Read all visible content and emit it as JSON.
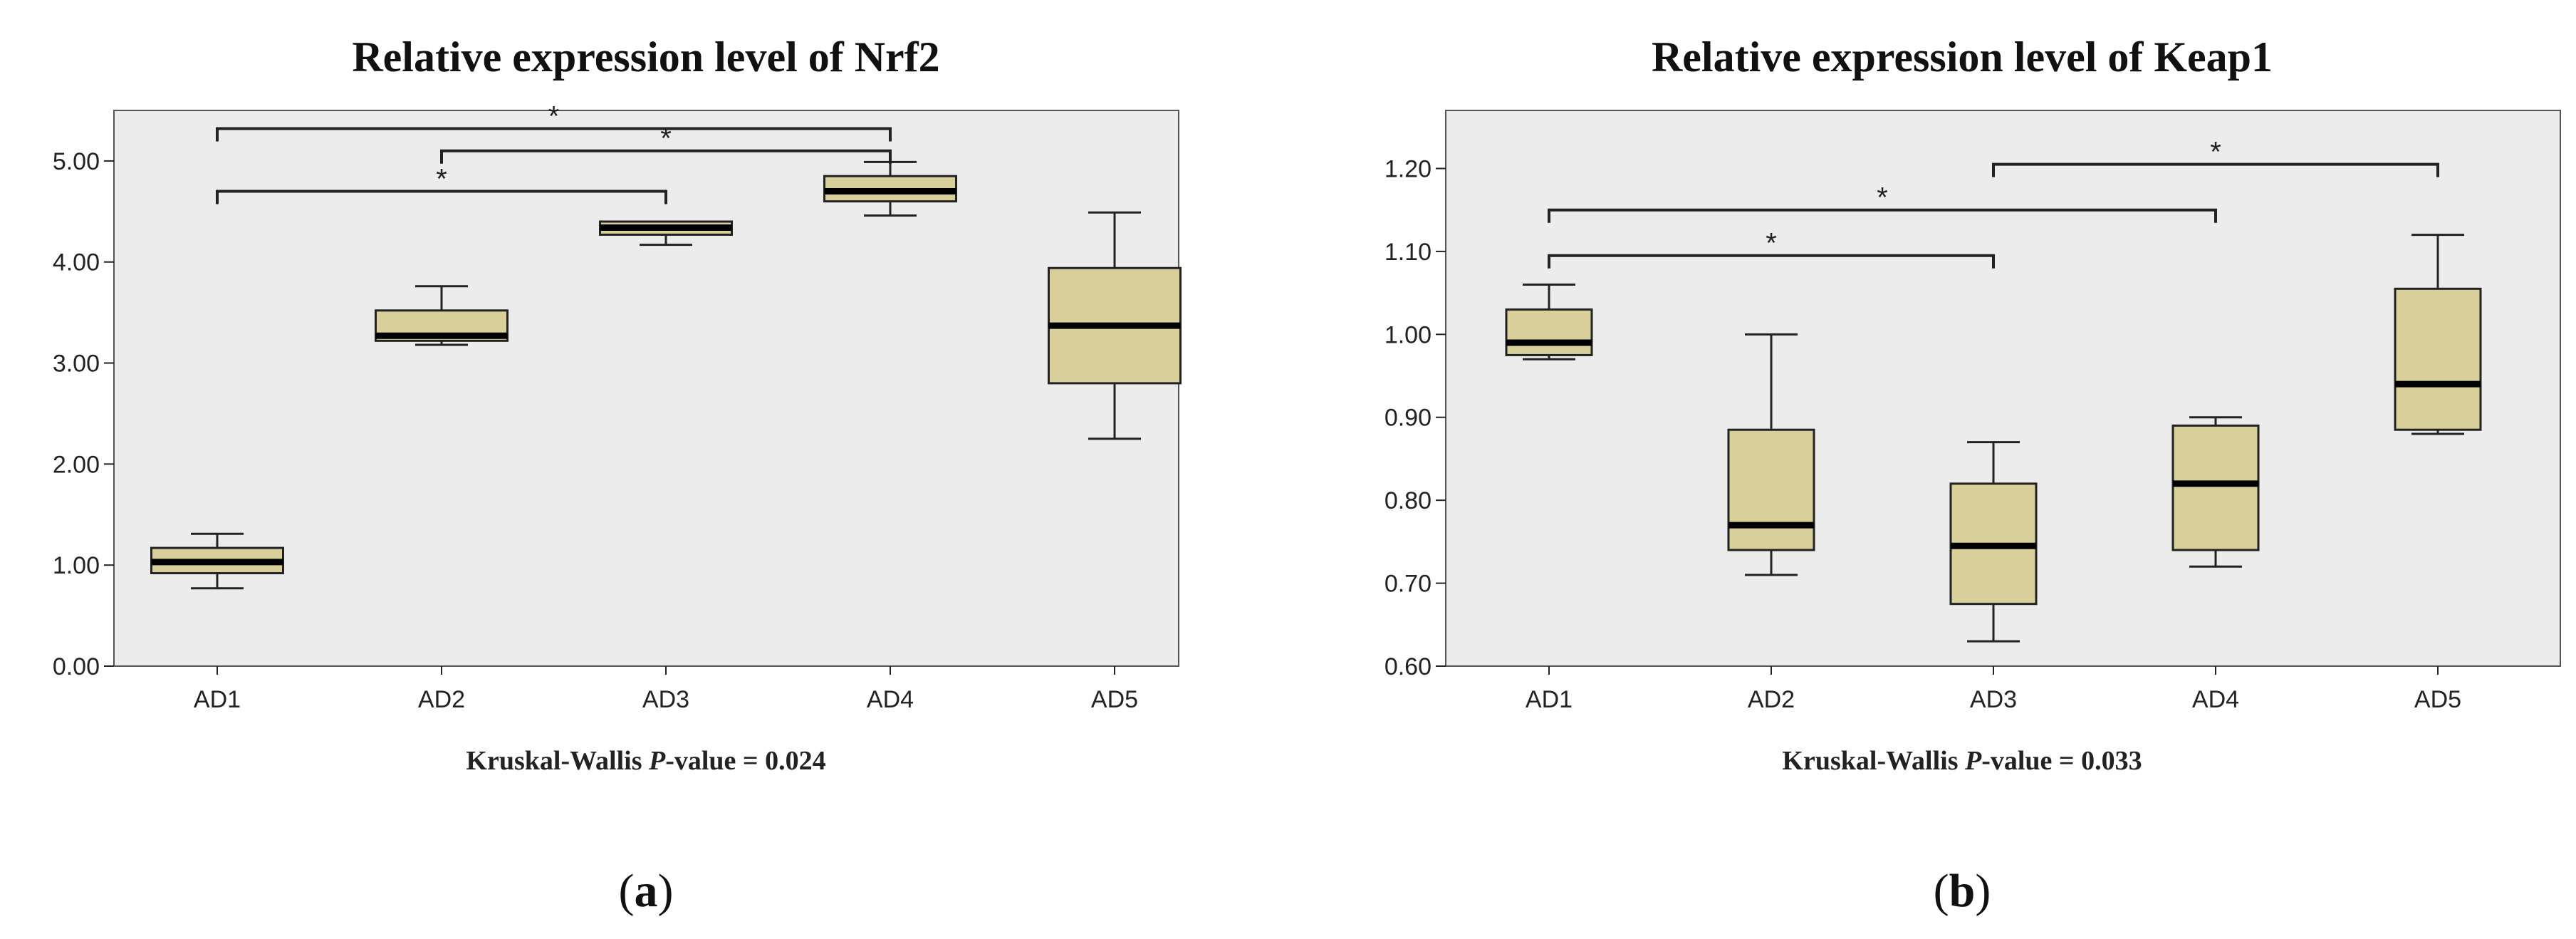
{
  "chart_data": [
    {
      "type": "boxplot",
      "title": "Relative expression level of Nrf2",
      "note_prefix": "Kruskal-Wallis ",
      "note_italic": "P",
      "note_suffix": "-value = 0.024",
      "panel_label": "a",
      "categories": [
        "AD1",
        "AD2",
        "AD3",
        "AD4",
        "AD5"
      ],
      "ylim": [
        0,
        5.5
      ],
      "yticks": [
        0,
        1,
        2,
        3,
        4,
        5
      ],
      "ytick_labels": [
        "0.00",
        "1.00",
        "2.00",
        "3.00",
        "4.00",
        "5.00"
      ],
      "boxes": [
        {
          "category": "AD1",
          "min": 0.77,
          "q1": 0.92,
          "median": 1.03,
          "q3": 1.17,
          "max": 1.31
        },
        {
          "category": "AD2",
          "min": 3.18,
          "q1": 3.22,
          "median": 3.27,
          "q3": 3.52,
          "max": 3.76
        },
        {
          "category": "AD3",
          "min": 4.17,
          "q1": 4.27,
          "median": 4.34,
          "q3": 4.4,
          "max": 4.4
        },
        {
          "category": "AD4",
          "min": 4.46,
          "q1": 4.6,
          "median": 4.7,
          "q3": 4.85,
          "max": 4.99
        },
        {
          "category": "AD5",
          "min": 2.25,
          "q1": 2.8,
          "median": 3.37,
          "q3": 3.94,
          "max": 4.49
        }
      ],
      "significance": [
        {
          "from": "AD1",
          "to": "AD3",
          "y": 4.7,
          "label": "*"
        },
        {
          "from": "AD2",
          "to": "AD4",
          "y": 5.1,
          "label": "*"
        },
        {
          "from": "AD1",
          "to": "AD4",
          "y": 5.32,
          "label": "*"
        }
      ]
    },
    {
      "type": "boxplot",
      "title": "Relative expression level of Keap1",
      "note_prefix": "Kruskal-Wallis ",
      "note_italic": "P",
      "note_suffix": "-value = 0.033",
      "panel_label": "b",
      "categories": [
        "AD1",
        "AD2",
        "AD3",
        "AD4",
        "AD5"
      ],
      "ylim": [
        0.6,
        1.27
      ],
      "yticks": [
        0.6,
        0.7,
        0.8,
        0.9,
        1.0,
        1.1,
        1.2
      ],
      "ytick_labels": [
        "0.60",
        "0.70",
        "0.80",
        "0.90",
        "1.00",
        "1.10",
        "1.20"
      ],
      "boxes": [
        {
          "category": "AD1",
          "min": 0.97,
          "q1": 0.975,
          "median": 0.99,
          "q3": 1.03,
          "max": 1.06
        },
        {
          "category": "AD2",
          "min": 0.71,
          "q1": 0.74,
          "median": 0.77,
          "q3": 0.885,
          "max": 1.0
        },
        {
          "category": "AD3",
          "min": 0.63,
          "q1": 0.675,
          "median": 0.745,
          "q3": 0.82,
          "max": 0.87
        },
        {
          "category": "AD4",
          "min": 0.72,
          "q1": 0.74,
          "median": 0.82,
          "q3": 0.89,
          "max": 0.9
        },
        {
          "category": "AD5",
          "min": 0.88,
          "q1": 0.885,
          "median": 0.94,
          "q3": 1.055,
          "max": 1.12
        }
      ],
      "significance": [
        {
          "from": "AD1",
          "to": "AD3",
          "y": 1.095,
          "label": "*"
        },
        {
          "from": "AD1",
          "to": "AD4",
          "y": 1.15,
          "label": "*"
        },
        {
          "from": "AD3",
          "to": "AD5",
          "y": 1.205,
          "label": "*"
        }
      ]
    }
  ],
  "colors": {
    "plot_bg": "#ececec",
    "box_fill": "#d8cf9a",
    "stroke": "#222222",
    "median": "#000000"
  }
}
